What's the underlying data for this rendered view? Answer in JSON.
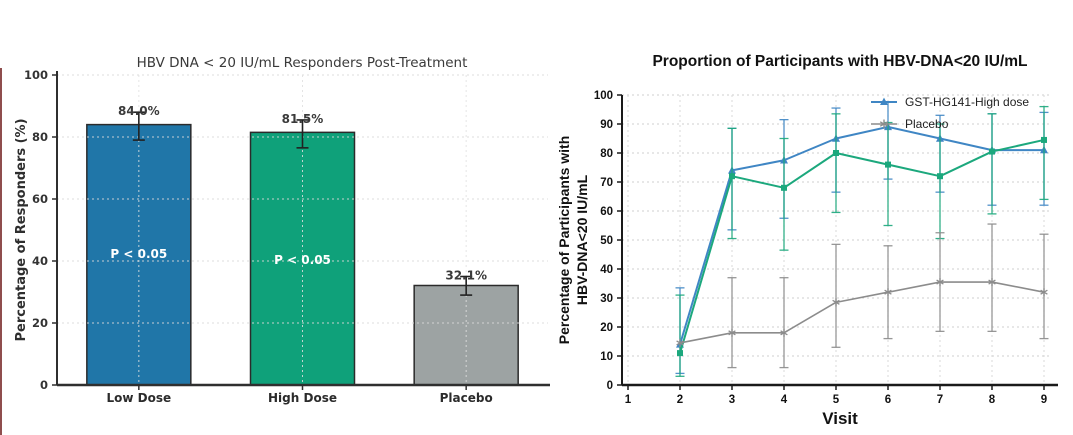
{
  "page": {
    "background": "#ffffff",
    "left_edge_marker_color": "#7b2f2f"
  },
  "chart_data": [
    {
      "type": "bar",
      "title": "HBV DNA < 20 IU/mL Responders Post-Treatment",
      "ylabel": "Percentage of Responders (%)",
      "xlabel": "",
      "categories": [
        "Low Dose",
        "High Dose",
        "Placebo"
      ],
      "values": [
        84.0,
        81.5,
        32.1
      ],
      "value_labels": [
        "84.0%",
        "81.5%",
        "32.1%"
      ],
      "error_low": [
        79,
        76.5,
        29
      ],
      "error_high": [
        88,
        85.5,
        35
      ],
      "bar_colors": [
        "#2076a8",
        "#0fa17a",
        "#9da3a3"
      ],
      "bar_edge_color": "#2b2b2b",
      "annotations": [
        {
          "bar_index": 0,
          "text": "P < 0.05",
          "y_value": 41
        },
        {
          "bar_index": 1,
          "text": "P < 0.05",
          "y_value": 39
        }
      ],
      "ylim": [
        0,
        100
      ],
      "yticks": [
        0,
        20,
        40,
        60,
        80,
        100
      ],
      "grid": true,
      "legend_position": "none"
    },
    {
      "type": "line",
      "title": "Proportion of Participants with HBV-DNA<20 IU/mL",
      "xlabel": "Visit",
      "ylabel_lines": [
        "Percentage of Participants with",
        "HBV-DNA<20 IU/mL"
      ],
      "x": [
        2,
        3,
        4,
        5,
        6,
        7,
        8,
        9
      ],
      "xticks": [
        1,
        2,
        3,
        4,
        5,
        6,
        7,
        8,
        9
      ],
      "xlim": [
        1,
        9
      ],
      "ylim": [
        0,
        100
      ],
      "yticks": [
        0,
        10,
        20,
        30,
        40,
        50,
        60,
        70,
        80,
        90,
        100
      ],
      "grid": true,
      "legend_position": "upper right",
      "legend": [
        "GST-HG141-High dose",
        "Placebo"
      ],
      "series": [
        {
          "name": "GST-HG141-High dose",
          "color": "#3f86c4",
          "marker": "triangle",
          "in_legend": true,
          "values": [
            14,
            74,
            77.5,
            85,
            89,
            85,
            81,
            81
          ],
          "error_low": [
            4,
            53.5,
            57.5,
            66.5,
            71,
            66.5,
            62,
            62
          ],
          "error_high": [
            33.5,
            88.5,
            91.5,
            95.5,
            97.5,
            93,
            93.5,
            94
          ]
        },
        {
          "name": "",
          "color": "#1ca87d",
          "marker": "square",
          "in_legend": false,
          "values": [
            11,
            72,
            68,
            80,
            76,
            72,
            80.5,
            84.5
          ],
          "error_low": [
            3,
            50.5,
            46.5,
            59.5,
            55,
            50.5,
            59,
            64
          ],
          "error_high": [
            31,
            88.5,
            85,
            93.5,
            90.5,
            90,
            93.5,
            96
          ]
        },
        {
          "name": "Placebo",
          "color": "#8c8c8c",
          "marker": "star",
          "in_legend": true,
          "values": [
            14.5,
            18,
            18,
            28.5,
            32,
            35.5,
            35.5,
            32
          ],
          "error_low": [
            null,
            6,
            6,
            13,
            16,
            18.5,
            18.5,
            16
          ],
          "error_high": [
            null,
            37,
            37,
            48.5,
            48,
            52.5,
            55.5,
            52
          ]
        }
      ]
    }
  ]
}
